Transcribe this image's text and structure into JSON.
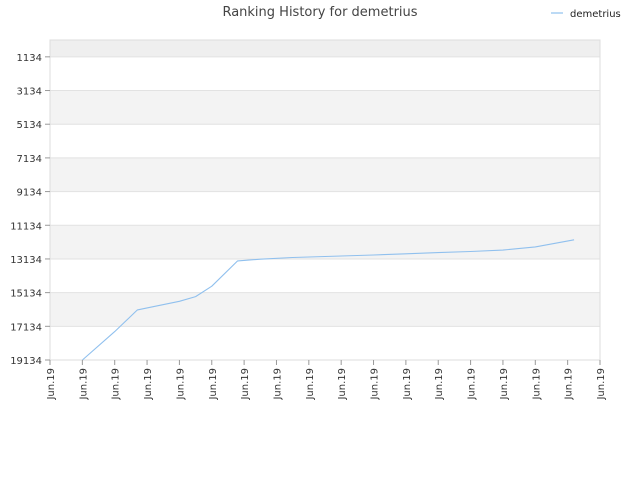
{
  "chart_data": {
    "type": "line",
    "title": "Ranking History for demetrius",
    "xlabel": "",
    "ylabel": "",
    "y_inverted": true,
    "ylim": [
      19134,
      134
    ],
    "y_ticks": [
      "1134",
      "3134",
      "5134",
      "7134",
      "9134",
      "11134",
      "13134",
      "15134",
      "17134",
      "19134"
    ],
    "x_ticks": [
      "Jun.19",
      "Jun.19",
      "Jun.19",
      "Jun.19",
      "Jun.19",
      "Jun.19",
      "Jun.19",
      "Jun.19",
      "Jun.19",
      "Jun.19",
      "Jun.19",
      "Jun.19",
      "Jun.19",
      "Jun.19",
      "Jun.19",
      "Jun.19",
      "Jun.19",
      "Jun.19"
    ],
    "legend": {
      "position": "top-right"
    },
    "grid": true,
    "series": [
      {
        "name": "demetrius",
        "color": "#90c0ee",
        "points": [
          [
            1.0,
            19134
          ],
          [
            2.0,
            17450
          ],
          [
            2.7,
            16160
          ],
          [
            3.3,
            15920
          ],
          [
            4.0,
            15650
          ],
          [
            4.5,
            15370
          ],
          [
            5.0,
            14750
          ],
          [
            5.8,
            13250
          ],
          [
            6.5,
            13150
          ],
          [
            7.5,
            13050
          ],
          [
            9.0,
            12960
          ],
          [
            10.0,
            12900
          ],
          [
            11.0,
            12830
          ],
          [
            12.0,
            12760
          ],
          [
            13.0,
            12690
          ],
          [
            14.0,
            12610
          ],
          [
            15.0,
            12420
          ],
          [
            16.2,
            12000
          ]
        ]
      }
    ]
  }
}
